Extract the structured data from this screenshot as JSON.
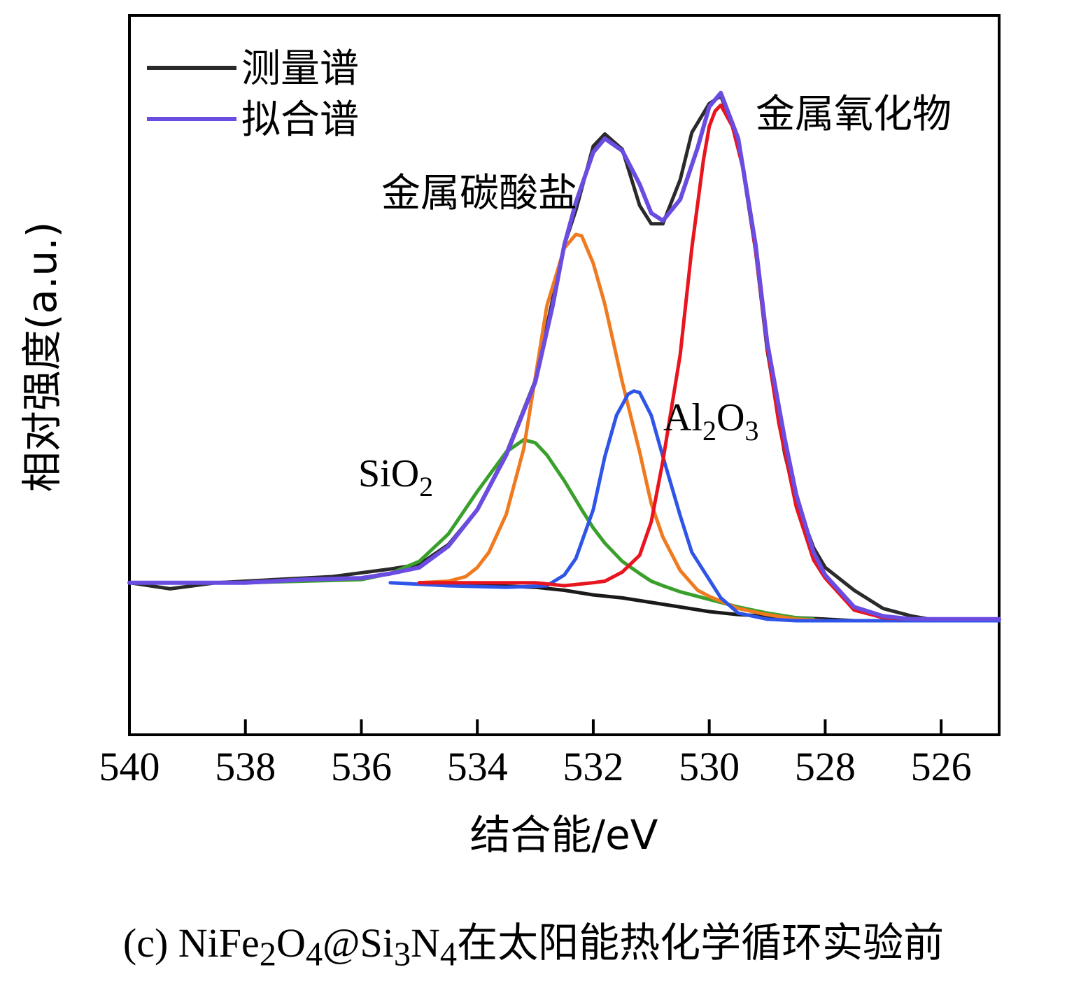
{
  "chart_data": {
    "type": "line",
    "xlabel": "结合能/eV",
    "ylabel": "相对强度(a.u.)",
    "xlim": [
      540,
      525
    ],
    "x_reversed": true,
    "ylim": [
      -1.0,
      3.73
    ],
    "x_ticks": [
      540,
      538,
      536,
      534,
      532,
      530,
      528,
      526
    ],
    "x_tick_labels": [
      "540",
      "538",
      "536",
      "534",
      "532",
      "530",
      "528",
      "526"
    ],
    "grid": false,
    "legend": {
      "placement": "top-left",
      "entries": [
        {
          "label": "测量谱",
          "color": "#2a2a2a"
        },
        {
          "label": "拟合谱",
          "color": "#6a4de0"
        }
      ]
    },
    "series": [
      {
        "label": "测量谱",
        "color": "#2a2a2a",
        "x": [
          540,
          539.3,
          538.5,
          537.5,
          536.5,
          535.5,
          535,
          534.5,
          534,
          533.5,
          533,
          532.5,
          532.3,
          532,
          531.8,
          531.5,
          531.2,
          531,
          530.8,
          530.5,
          530.3,
          530,
          529.8,
          529.5,
          529.2,
          529,
          528.7,
          528.5,
          528.2,
          528,
          527.5,
          527,
          526.5,
          526.2,
          526,
          525.5,
          525
        ],
        "y": [
          0.0,
          -0.04,
          0.0,
          0.02,
          0.04,
          0.09,
          0.12,
          0.25,
          0.48,
          0.85,
          1.33,
          2.22,
          2.45,
          2.87,
          2.95,
          2.85,
          2.48,
          2.36,
          2.36,
          2.65,
          2.96,
          3.15,
          3.2,
          2.92,
          2.18,
          1.53,
          0.85,
          0.54,
          0.23,
          0.1,
          -0.05,
          -0.17,
          -0.22,
          -0.24,
          -0.24,
          -0.25,
          -0.25
        ]
      },
      {
        "label": "拟合谱",
        "color": "#6a4de0",
        "x": [
          540,
          539,
          538,
          537,
          536,
          535.5,
          535,
          534.5,
          534,
          533.5,
          533,
          532.7,
          532.5,
          532.3,
          532,
          531.8,
          531.5,
          531.2,
          531,
          530.8,
          530.5,
          530.2,
          530,
          529.8,
          529.5,
          529.2,
          529,
          528.7,
          528.5,
          528.2,
          528,
          527.5,
          527,
          526.5,
          526,
          525.5,
          525
        ],
        "y": [
          0.0,
          0.0,
          0.0,
          0.02,
          0.03,
          0.06,
          0.1,
          0.24,
          0.48,
          0.84,
          1.32,
          1.82,
          2.22,
          2.5,
          2.83,
          2.92,
          2.84,
          2.62,
          2.43,
          2.38,
          2.52,
          2.86,
          3.13,
          3.22,
          2.92,
          2.22,
          1.58,
          0.95,
          0.58,
          0.2,
          0.05,
          -0.16,
          -0.22,
          -0.24,
          -0.24,
          -0.24,
          -0.24
        ]
      },
      {
        "label": "SiO₂",
        "color": "#3aa02c",
        "x": [
          538,
          537,
          536,
          535.5,
          535,
          534.5,
          534,
          533.5,
          533.2,
          533,
          532.8,
          532.5,
          532.2,
          532,
          531.8,
          531.5,
          531.2,
          531,
          530.8,
          530.5,
          530,
          529.5,
          529,
          528.5,
          528.2
        ],
        "y": [
          0.0,
          0.01,
          0.02,
          0.06,
          0.14,
          0.32,
          0.6,
          0.86,
          0.94,
          0.92,
          0.84,
          0.67,
          0.48,
          0.36,
          0.26,
          0.14,
          0.06,
          0.01,
          -0.02,
          -0.06,
          -0.11,
          -0.16,
          -0.2,
          -0.23,
          -0.24
        ]
      },
      {
        "label": "金属碳酸盐",
        "color": "#f07a20",
        "x": [
          535,
          534.5,
          534.2,
          534,
          533.8,
          533.5,
          533.2,
          533,
          532.8,
          532.5,
          532.3,
          532.2,
          532,
          531.8,
          531.5,
          531.2,
          531,
          530.8,
          530.5,
          530.2,
          530,
          529.5,
          529,
          528.5,
          528
        ],
        "y": [
          0.0,
          0.01,
          0.04,
          0.1,
          0.2,
          0.45,
          0.88,
          1.35,
          1.82,
          2.2,
          2.29,
          2.28,
          2.1,
          1.83,
          1.32,
          0.86,
          0.52,
          0.3,
          0.08,
          -0.05,
          -0.09,
          -0.17,
          -0.21,
          -0.24,
          -0.25
        ]
      },
      {
        "label": "Al₂O₃",
        "color": "#2e55e8",
        "x": [
          535.5,
          534.5,
          533.5,
          532.8,
          532.5,
          532.3,
          532,
          531.8,
          531.6,
          531.4,
          531.3,
          531.2,
          531,
          530.8,
          530.5,
          530.3,
          530,
          529.8,
          529.5,
          529,
          528.5,
          528,
          527,
          526,
          525.5,
          525
        ],
        "y": [
          0.0,
          -0.02,
          -0.03,
          -0.02,
          0.05,
          0.16,
          0.48,
          0.83,
          1.1,
          1.24,
          1.26,
          1.25,
          1.1,
          0.83,
          0.44,
          0.2,
          0.02,
          -0.1,
          -0.2,
          -0.24,
          -0.25,
          -0.25,
          -0.25,
          -0.25,
          -0.25,
          -0.25
        ]
      },
      {
        "label": "金属氧化物",
        "color": "#e8141e",
        "x": [
          535,
          534,
          533,
          532.5,
          532,
          531.8,
          531.5,
          531.2,
          531,
          530.8,
          530.5,
          530.3,
          530.1,
          530,
          529.9,
          529.8,
          529.6,
          529.4,
          529.2,
          529,
          528.8,
          528.5,
          528.2,
          528,
          527.5,
          527,
          526.5
        ],
        "y": [
          0.0,
          0.0,
          0.0,
          -0.02,
          0.0,
          0.01,
          0.07,
          0.18,
          0.4,
          0.8,
          1.5,
          2.2,
          2.78,
          3.0,
          3.1,
          3.14,
          3.0,
          2.7,
          2.18,
          1.55,
          1.05,
          0.5,
          0.15,
          0.03,
          -0.18,
          -0.23,
          -0.24
        ]
      },
      {
        "label": "baseline",
        "color": "#1a1a1a",
        "x": [
          535,
          533,
          532.5,
          532,
          531.5,
          531,
          530.5,
          530,
          529.5,
          529,
          528.5,
          528,
          527.5
        ],
        "y": [
          0.0,
          -0.03,
          -0.05,
          -0.08,
          -0.1,
          -0.13,
          -0.16,
          -0.19,
          -0.21,
          -0.22,
          -0.23,
          -0.24,
          -0.25
        ]
      }
    ],
    "annotations": [
      {
        "text": "金属碳酸盐",
        "x": 532.1,
        "y": 2.45
      },
      {
        "text": "金属氧化物",
        "x": 528.8,
        "y": 2.95
      },
      {
        "text": "SiO",
        "sub": "2",
        "x": 534.0,
        "y": 0.72
      },
      {
        "text": "Al",
        "sub": "2",
        "text2": "O",
        "sub2": "3",
        "x": 529.8,
        "y": 1.05
      }
    ]
  },
  "caption": {
    "prefix": "(c) NiFe",
    "s1": "2",
    "mid1": "O",
    "s2": "4",
    "mid2": "@Si",
    "s3": "3",
    "mid3": "N",
    "s4": "4",
    "suffix": "在太阳能热化学循环实验前"
  }
}
